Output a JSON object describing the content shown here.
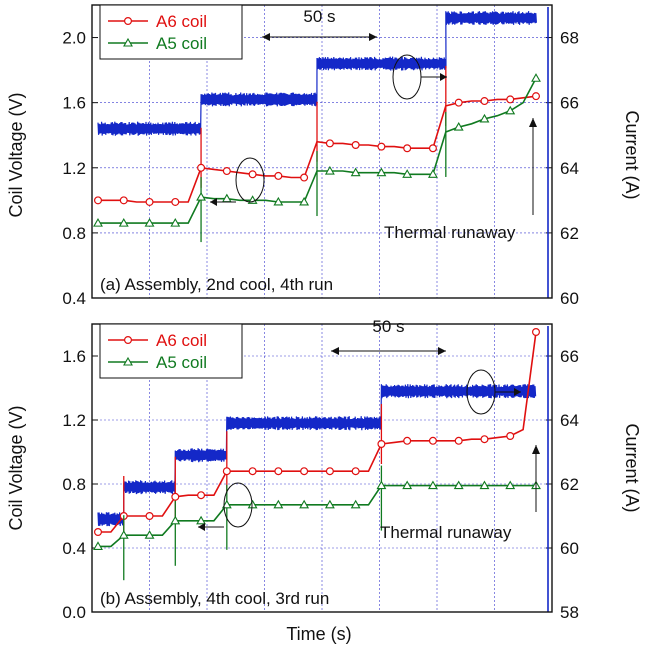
{
  "colors": {
    "a6": "#e01010",
    "a5": "#107a20",
    "current": "#1428c8",
    "grid": "#3a3ad0"
  },
  "chart_data": [
    {
      "type": "line",
      "panel_label": "(a) Assembly, 2nd cool, 4th run",
      "xlabel": "",
      "ylabel": "Coil Voltage (V)",
      "y2label": "Current (A)",
      "ylim": [
        0.4,
        2.2
      ],
      "y2lim": [
        60,
        69
      ],
      "yticks": [
        "0.4",
        "0.8",
        "1.2",
        "1.6",
        "2.0"
      ],
      "y2ticks": [
        "60",
        "62",
        "64",
        "66",
        "68"
      ],
      "x": [
        0,
        1,
        2,
        3,
        4,
        5,
        6,
        7,
        8,
        9,
        10,
        11,
        12,
        13,
        14,
        15,
        16,
        17,
        18,
        19,
        20,
        21,
        22,
        23,
        24,
        25,
        26,
        27,
        28,
        29,
        30,
        31,
        32,
        33,
        34
      ],
      "series": [
        {
          "name": "A6 coil",
          "color_key": "a6",
          "axis": "left",
          "marker": "circle",
          "values": [
            1.0,
            1.0,
            1.0,
            0.99,
            0.99,
            0.99,
            0.99,
            0.99,
            1.2,
            1.19,
            1.18,
            1.17,
            1.16,
            1.15,
            1.15,
            1.14,
            1.14,
            1.36,
            1.35,
            1.35,
            1.34,
            1.34,
            1.33,
            1.33,
            1.32,
            1.32,
            1.32,
            1.58,
            1.6,
            1.61,
            1.61,
            1.62,
            1.62,
            1.63,
            1.64
          ]
        },
        {
          "name": "A5 coil",
          "color_key": "a5",
          "axis": "left",
          "marker": "triangle",
          "values": [
            0.86,
            0.86,
            0.86,
            0.86,
            0.86,
            0.86,
            0.86,
            0.86,
            1.02,
            1.01,
            1.01,
            1.0,
            1.0,
            1.0,
            0.99,
            0.99,
            0.99,
            1.18,
            1.18,
            1.18,
            1.17,
            1.17,
            1.17,
            1.17,
            1.16,
            1.16,
            1.16,
            1.42,
            1.45,
            1.47,
            1.5,
            1.52,
            1.55,
            1.6,
            1.75
          ]
        },
        {
          "name": "Current",
          "color_key": "current",
          "axis": "right",
          "marker": "none",
          "steps": [
            [
              0,
              8,
              65.2
            ],
            [
              8,
              17,
              66.1
            ],
            [
              17,
              27,
              67.2
            ],
            [
              27,
              34,
              68.6
            ]
          ]
        }
      ],
      "annotations": [
        "50 s",
        "Thermal runaway"
      ]
    },
    {
      "type": "line",
      "panel_label": "(b) Assembly, 4th cool, 3rd run",
      "xlabel": "Time (s)",
      "ylabel": "Coil Voltage (V)",
      "y2label": "Current (A)",
      "ylim": [
        0.0,
        1.8
      ],
      "y2lim": [
        58,
        67
      ],
      "yticks": [
        "0.0",
        "0.4",
        "0.8",
        "1.2",
        "1.6"
      ],
      "y2ticks": [
        "58",
        "60",
        "62",
        "64",
        "66"
      ],
      "x": [
        0,
        1,
        2,
        3,
        4,
        5,
        6,
        7,
        8,
        9,
        10,
        11,
        12,
        13,
        14,
        15,
        16,
        17,
        18,
        19,
        20,
        21,
        22,
        23,
        24,
        25,
        26,
        27,
        28,
        29,
        30,
        31,
        32,
        33,
        34
      ],
      "series": [
        {
          "name": "A6 coil",
          "color_key": "a6",
          "axis": "left",
          "marker": "circle",
          "values": [
            0.5,
            0.5,
            0.6,
            0.6,
            0.6,
            0.6,
            0.72,
            0.73,
            0.73,
            0.73,
            0.88,
            0.88,
            0.88,
            0.88,
            0.88,
            0.88,
            0.88,
            0.88,
            0.88,
            0.88,
            0.88,
            0.88,
            1.05,
            1.06,
            1.07,
            1.07,
            1.07,
            1.07,
            1.07,
            1.08,
            1.08,
            1.09,
            1.1,
            1.14,
            1.75
          ]
        },
        {
          "name": "A5 coil",
          "color_key": "a5",
          "axis": "left",
          "marker": "triangle",
          "values": [
            0.41,
            0.41,
            0.48,
            0.48,
            0.48,
            0.48,
            0.57,
            0.57,
            0.57,
            0.57,
            0.67,
            0.67,
            0.67,
            0.67,
            0.67,
            0.67,
            0.67,
            0.67,
            0.67,
            0.67,
            0.67,
            0.67,
            0.79,
            0.79,
            0.79,
            0.79,
            0.79,
            0.79,
            0.79,
            0.79,
            0.79,
            0.79,
            0.79,
            0.79,
            0.79
          ]
        },
        {
          "name": "Current",
          "color_key": "current",
          "axis": "right",
          "marker": "none",
          "steps": [
            [
              0,
              2,
              60.9
            ],
            [
              2,
              6,
              61.9
            ],
            [
              6,
              10,
              62.9
            ],
            [
              10,
              22,
              63.9
            ],
            [
              22,
              34,
              64.9
            ]
          ]
        }
      ],
      "annotations": [
        "50 s",
        "Thermal runaway"
      ]
    }
  ]
}
